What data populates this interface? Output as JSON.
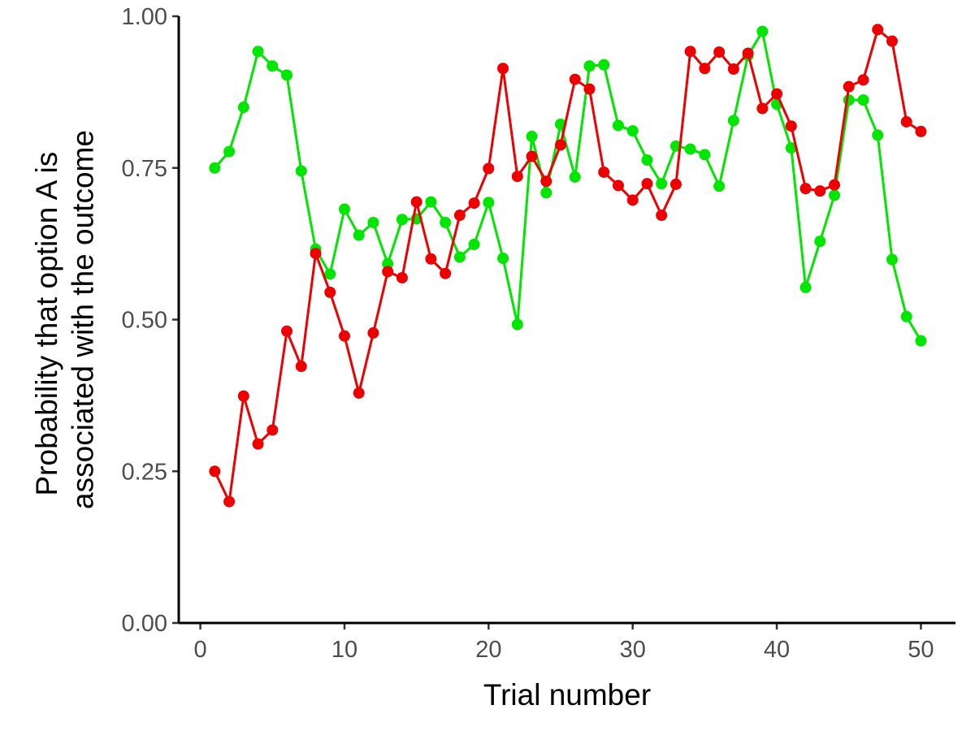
{
  "chart_data": {
    "type": "line",
    "title": "",
    "xlabel": "Trial number",
    "ylabel_lines": [
      "Probability that option A is",
      "associated with the outcome"
    ],
    "xlim": [
      -1.5,
      52.4
    ],
    "ylim": [
      0,
      1
    ],
    "x_ticks": [
      0,
      10,
      20,
      30,
      40,
      50
    ],
    "y_ticks": [
      0,
      0.25,
      0.5,
      0.75,
      1
    ],
    "x_tick_labels": [
      "0",
      "10",
      "20",
      "30",
      "40",
      "50"
    ],
    "y_tick_labels": [
      "0.00",
      "0.25",
      "0.50",
      "0.75",
      "1.00"
    ],
    "grid": false,
    "legend": "none",
    "x": [
      1,
      2,
      3,
      4,
      5,
      6,
      7,
      8,
      9,
      10,
      11,
      12,
      13,
      14,
      15,
      16,
      17,
      18,
      19,
      20,
      21,
      22,
      23,
      24,
      25,
      26,
      27,
      28,
      29,
      30,
      31,
      32,
      33,
      34,
      35,
      36,
      37,
      38,
      39,
      40,
      41,
      42,
      43,
      44,
      45,
      46,
      47,
      48,
      49,
      50
    ],
    "series": [
      {
        "color": "#00e600",
        "values": [
          0.75,
          0.777,
          0.85,
          0.942,
          0.918,
          0.903,
          0.745,
          0.616,
          0.575,
          0.682,
          0.639,
          0.66,
          0.592,
          0.665,
          0.666,
          0.694,
          0.66,
          0.603,
          0.624,
          0.693,
          0.601,
          0.492,
          0.802,
          0.709,
          0.822,
          0.735,
          0.918,
          0.92,
          0.82,
          0.811,
          0.763,
          0.724,
          0.786,
          0.781,
          0.772,
          0.72,
          0.828,
          0.935,
          0.975,
          0.855,
          0.783,
          0.553,
          0.629,
          0.705,
          0.862,
          0.862,
          0.804,
          0.599,
          0.505,
          0.465
        ]
      },
      {
        "color": "#ee0000",
        "values": [
          0.25,
          0.2,
          0.374,
          0.295,
          0.318,
          0.481,
          0.423,
          0.609,
          0.545,
          0.473,
          0.379,
          0.478,
          0.579,
          0.569,
          0.694,
          0.6,
          0.576,
          0.672,
          0.692,
          0.749,
          0.914,
          0.736,
          0.769,
          0.728,
          0.788,
          0.896,
          0.88,
          0.743,
          0.721,
          0.697,
          0.724,
          0.672,
          0.723,
          0.942,
          0.914,
          0.941,
          0.913,
          0.939,
          0.848,
          0.872,
          0.819,
          0.716,
          0.712,
          0.722,
          0.884,
          0.895,
          0.978,
          0.959,
          0.826,
          0.81
        ]
      }
    ]
  }
}
